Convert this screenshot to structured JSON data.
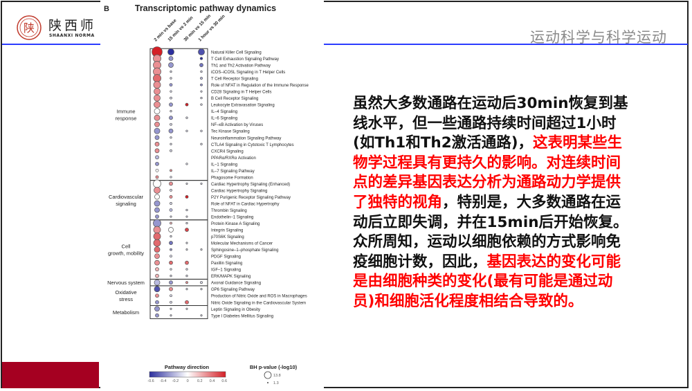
{
  "header": {
    "logo": {
      "cn": "陕西师",
      "en": "SHAANXI NORMA"
    },
    "title": "运动科学与科学运动"
  },
  "body_text": [
    [
      {
        "t": "虽然大多数通路在运动后30min恢复到基",
        "red": false
      }
    ],
    [
      {
        "t": "线水平，但一些通路持续时间超过1小时",
        "red": false
      }
    ],
    [
      {
        "t": "(如Th1和Th2激活通路)，",
        "red": false
      },
      {
        "t": "这表明某些生",
        "red": true
      }
    ],
    [
      {
        "t": "物学过程具有更持久的影响。对连续时间",
        "red": true
      }
    ],
    [
      {
        "t": "点的差异基因表达分析为通路动力学提供",
        "red": true
      }
    ],
    [
      {
        "t": "了独特的视角",
        "red": true
      },
      {
        "t": "，特别是，大多数通路在运",
        "red": false
      }
    ],
    [
      {
        "t": "动后立即失调，并在15min后开始恢复。",
        "red": false
      }
    ],
    [
      {
        "t": "众所周知，运动以细胞依赖的方式影响免",
        "red": false
      }
    ],
    [
      {
        "t": "疫细胞计数，因此，",
        "red": false
      },
      {
        "t": "基因表达的变化可能",
        "red": true
      }
    ],
    [
      {
        "t": "是由细胞种类的变化(最有可能是通过动",
        "red": true
      }
    ],
    [
      {
        "t": "员)和细胞活化程度相结合导致的。",
        "red": true
      }
    ]
  ],
  "colors": {
    "accent_red": "#ff0000",
    "bar_red": "#a50021",
    "rule_blue": "#2b3bff",
    "neg": "#2c2f9e",
    "pos": "#d41f26"
  },
  "chart_data": {
    "type": "dot-matrix",
    "panel_label": "B",
    "title": "Transcriptomic pathway dynamics",
    "columns": [
      "2 min vs base",
      "15 min vs 2 min",
      "30 min vs 15 min",
      "1 hour vs 30 min"
    ],
    "color_legend": {
      "title": "Pathway direction",
      "range": [
        -0.6,
        0.6
      ],
      "ticks": [
        "-0.6",
        "-0.4",
        "-0.2",
        "0",
        "0.2",
        "0.4",
        "0.6"
      ]
    },
    "size_legend": {
      "title": "BH p-value (-log10)",
      "values": [
        "13.8",
        "1.3"
      ]
    },
    "cell_format": "[direction, -log10 p]",
    "groups": [
      {
        "name": "Immune response",
        "rows": [
          {
            "label": "Natural Killer Cell Signaling",
            "cells": [
              [
                0.6,
                13.8
              ],
              [
                -0.6,
                8
              ],
              null,
              [
                -0.5,
                8
              ]
            ]
          },
          {
            "label": "T Cell Exhaustion Signaling Pathway",
            "cells": [
              [
                0.3,
                10
              ],
              [
                -0.3,
                5
              ],
              null,
              [
                -0.6,
                2.5
              ]
            ]
          },
          {
            "label": "Th1 and Th2 Activation Pathway",
            "cells": [
              [
                0.3,
                10
              ],
              [
                -0.3,
                6
              ],
              null,
              [
                -0.4,
                4
              ]
            ]
          },
          {
            "label": "iCOS–iCOSL Signaling in T Helper Cells",
            "cells": [
              [
                0.3,
                10
              ],
              [
                -0.1,
                1.5
              ],
              null,
              [
                -0.1,
                1.5
              ]
            ]
          },
          {
            "label": "T Cell Receptor Signaling",
            "cells": [
              [
                0.4,
                10
              ],
              [
                -0.1,
                1.5
              ],
              null,
              [
                -0.2,
                2
              ]
            ]
          },
          {
            "label": "Role of NFAT in Regulation of the Immune Response",
            "cells": [
              [
                0.3,
                9
              ],
              [
                -0.3,
                3
              ],
              null,
              [
                -0.3,
                2
              ]
            ]
          },
          {
            "label": "CD28 Signaling in T Helper Cells",
            "cells": [
              [
                0.3,
                8
              ],
              [
                -0.1,
                1.5
              ],
              null,
              [
                -0.1,
                1.3
              ]
            ]
          },
          {
            "label": "B Cell Receptor Signaling",
            "cells": [
              [
                0.3,
                8
              ],
              [
                -0.1,
                2
              ],
              null,
              [
                -0.1,
                1.5
              ]
            ]
          },
          {
            "label": "Leukocyte Extravasation Signaling",
            "cells": [
              [
                0.3,
                8
              ],
              [
                -0.3,
                4
              ],
              [
                0.6,
                3
              ],
              [
                -0.1,
                1.5
              ]
            ]
          },
          {
            "label": "IL–4 Signaling",
            "cells": [
              [
                0,
                7
              ],
              [
                -0.1,
                1.5
              ],
              null,
              null
            ]
          },
          {
            "label": "IL–6 Signaling",
            "cells": [
              [
                0.3,
                7
              ],
              [
                -0.3,
                4
              ],
              [
                -0.1,
                1.5
              ],
              null
            ]
          },
          {
            "label": "NF–κB Activation by Viruses",
            "cells": [
              [
                0.3,
                6
              ],
              [
                -0.1,
                2
              ],
              null,
              null
            ]
          },
          {
            "label": "Tec Kinase Signaling",
            "cells": [
              [
                -0.3,
                7
              ],
              [
                -0.3,
                5
              ],
              [
                -0.1,
                1.5
              ],
              [
                -0.1,
                1.5
              ]
            ]
          },
          {
            "label": "Neuroinflammation Signaling Pathway",
            "cells": [
              [
                -0.3,
                5
              ],
              [
                -0.1,
                1.5
              ],
              null,
              null
            ]
          },
          {
            "label": "CTLA4 Signaling in Cytotoxic T Lymphocytes",
            "cells": [
              [
                0.3,
                5
              ],
              [
                -0.1,
                1.5
              ],
              null,
              [
                -0.1,
                1.5
              ]
            ]
          },
          {
            "label": "CXCR4 Signaling",
            "cells": [
              [
                0.3,
                5
              ],
              [
                -0.1,
                2
              ],
              null,
              null
            ]
          },
          {
            "label": "PPARα/RXRα Activation",
            "cells": [
              [
                -0.2,
                4
              ],
              null,
              null,
              null
            ]
          },
          {
            "label": "IL–1 Signaling",
            "cells": [
              [
                -0.3,
                4
              ],
              null,
              [
                -0.1,
                1.5
              ],
              null
            ]
          },
          {
            "label": "IL–7 Signaling Pathway",
            "cells": [
              [
                0,
                3
              ],
              [
                0.3,
                2
              ],
              null,
              null
            ]
          },
          {
            "label": "Phagosome Formation",
            "cells": [
              [
                0.3,
                3
              ],
              [
                -0.1,
                1.5
              ],
              null,
              null
            ]
          }
        ]
      },
      {
        "name": "Cardiovascular signaling",
        "rows": [
          {
            "label": "Cardiac Hypertrophy Signaling (Enhanced)",
            "cells": [
              [
                0,
                10
              ],
              [
                0.3,
                4
              ],
              [
                -0.1,
                1.3
              ],
              [
                -0.1,
                1.3
              ]
            ]
          },
          {
            "label": "Cardiac Hypertrophy Signaling",
            "cells": [
              [
                0.3,
                8
              ],
              [
                -0.1,
                2
              ],
              null,
              null
            ]
          },
          {
            "label": "P2Y Purigenic Receptor Signaling Pathway",
            "cells": [
              [
                0,
                6
              ],
              [
                0.3,
                3
              ],
              [
                0.6,
                3
              ],
              null
            ]
          },
          {
            "label": "Role of NFAT in Cardiac Hypertrophy",
            "cells": [
              [
                -0.3,
                7
              ],
              [
                -0.1,
                2
              ],
              null,
              null
            ]
          },
          {
            "label": "Thrombin Signaling",
            "cells": [
              [
                -0.3,
                6
              ],
              [
                -0.2,
                3
              ],
              [
                -0.1,
                1.5
              ],
              null
            ]
          },
          {
            "label": "Endothelin–1 Signaling",
            "cells": [
              [
                -0.3,
                4
              ],
              [
                -0.1,
                1.3
              ],
              [
                -0.1,
                1.3
              ],
              null
            ]
          }
        ]
      },
      {
        "name": "Cell growth, mobility",
        "rows": [
          {
            "label": "Protein Kinase A Signaling",
            "cells": [
              [
                -0.3,
                10
              ],
              [
                0.2,
                2
              ],
              [
                -0.1,
                1.5
              ],
              null
            ]
          },
          {
            "label": "Integrin Signaling",
            "cells": [
              [
                0.3,
                9
              ],
              [
                0,
                6
              ],
              [
                0.5,
                4
              ],
              null
            ]
          },
          {
            "label": "p70S6K Signaling",
            "cells": [
              [
                0.4,
                9
              ],
              [
                -0.1,
                1.5
              ],
              null,
              null
            ]
          },
          {
            "label": "Molecular Mechanisms of Cancer",
            "cells": [
              [
                0.4,
                9
              ],
              [
                -0.4,
                4
              ],
              [
                -0.1,
                1.3
              ],
              null
            ]
          },
          {
            "label": "Sphingosine–1–phosphate Signaling",
            "cells": [
              [
                0.4,
                7
              ],
              [
                -0.3,
                2
              ],
              [
                -0.1,
                1.3
              ],
              [
                -0.1,
                1.3
              ]
            ]
          },
          {
            "label": "PDGF Signaling",
            "cells": [
              [
                0.3,
                6
              ],
              [
                -0.1,
                2
              ],
              null,
              null
            ]
          },
          {
            "label": "Paxillin Signaling",
            "cells": [
              [
                0.3,
                6
              ],
              [
                0.4,
                4
              ],
              [
                0.4,
                4
              ],
              null
            ]
          },
          {
            "label": "IGF–1 Signaling",
            "cells": [
              [
                0.2,
                4
              ],
              [
                -0.1,
                1.5
              ],
              [
                -0.1,
                1.5
              ],
              null
            ]
          },
          {
            "label": "ERK/MAPK Signaling",
            "cells": [
              [
                0.2,
                4
              ],
              [
                -0.1,
                1.5
              ],
              [
                -0.1,
                1.5
              ],
              null
            ]
          }
        ]
      },
      {
        "name": "Nervous system",
        "rows": [
          {
            "label": "Axonal Guidance Signaling",
            "cells": [
              [
                -0.2,
                7
              ],
              [
                -0.3,
                4
              ],
              [
                0.3,
                2
              ],
              [
                -0.1,
                2
              ]
            ]
          }
        ]
      },
      {
        "name": "Oxidative stress",
        "rows": [
          {
            "label": "GP6 Signaling Pathway",
            "cells": [
              [
                -0.5,
                7
              ],
              [
                0.3,
                4
              ],
              [
                -0.1,
                1.3
              ],
              [
                -0.1,
                1.3
              ]
            ]
          },
          {
            "label": "Production of Nitric Oxide and ROS in Macrophages",
            "cells": [
              [
                0.3,
                4
              ],
              [
                -0.1,
                2
              ],
              null,
              null
            ]
          },
          {
            "label": "Nitric Oxide Signaling in the Cardiovascular System",
            "cells": [
              [
                -0.3,
                4
              ],
              [
                -0.1,
                2
              ],
              [
                0.4,
                4
              ],
              null
            ]
          }
        ]
      },
      {
        "name": "Metabolism",
        "rows": [
          {
            "label": "Leptin Signaling in Obesity",
            "cells": [
              [
                -0.3,
                6
              ],
              [
                -0.1,
                1.3
              ],
              [
                -0.1,
                1.3
              ],
              null
            ]
          },
          {
            "label": "Type I Diabetes Mellitus Signaling",
            "cells": [
              [
                -0.3,
                4
              ],
              [
                -0.1,
                1.3
              ],
              null,
              [
                -0.1,
                1.3
              ]
            ]
          }
        ]
      }
    ]
  }
}
